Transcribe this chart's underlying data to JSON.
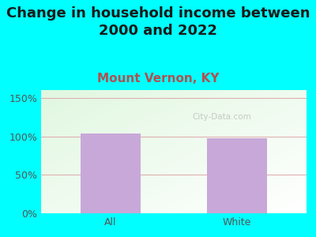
{
  "title": "Change in household income between\n2000 and 2022",
  "subtitle": "Mount Vernon, KY",
  "categories": [
    "All",
    "White"
  ],
  "values": [
    104,
    97
  ],
  "bar_color": "#c8a8d8",
  "background_color": "#00ffff",
  "yticks": [
    0,
    50,
    100,
    150
  ],
  "ytick_labels": [
    "0%",
    "50%",
    "100%",
    "150%"
  ],
  "ylim": [
    0,
    160
  ],
  "title_fontsize": 13,
  "subtitle_fontsize": 11,
  "subtitle_color": "#b05050",
  "title_color": "#1a1a1a",
  "watermark": "City-Data.com",
  "grid_color": "#e0b0b0",
  "tick_color": "#555555",
  "plot_bg_topleft": [
    0.88,
    0.97,
    0.88
  ],
  "plot_bg_bottomright": [
    1.0,
    1.0,
    1.0
  ]
}
